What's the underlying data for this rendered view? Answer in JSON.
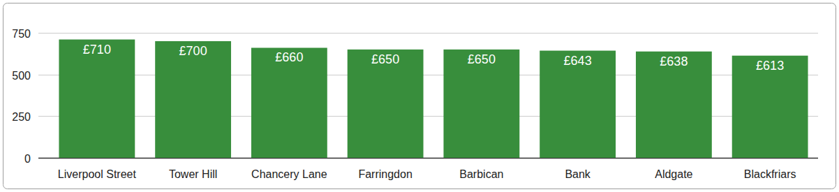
{
  "chart_data": {
    "type": "bar",
    "categories": [
      "Liverpool Street",
      "Tower Hill",
      "Chancery Lane",
      "Farringdon",
      "Barbican",
      "Bank",
      "Aldgate",
      "Blackfriars"
    ],
    "values": [
      710,
      700,
      660,
      650,
      650,
      643,
      638,
      613
    ],
    "value_labels": [
      "£710",
      "£700",
      "£660",
      "£650",
      "£650",
      "£643",
      "£638",
      "£613"
    ],
    "color": "#388e3c",
    "ylim": [
      0,
      750
    ],
    "yticks": [
      0,
      250,
      500,
      750
    ],
    "grid": true,
    "data_labels": true
  }
}
